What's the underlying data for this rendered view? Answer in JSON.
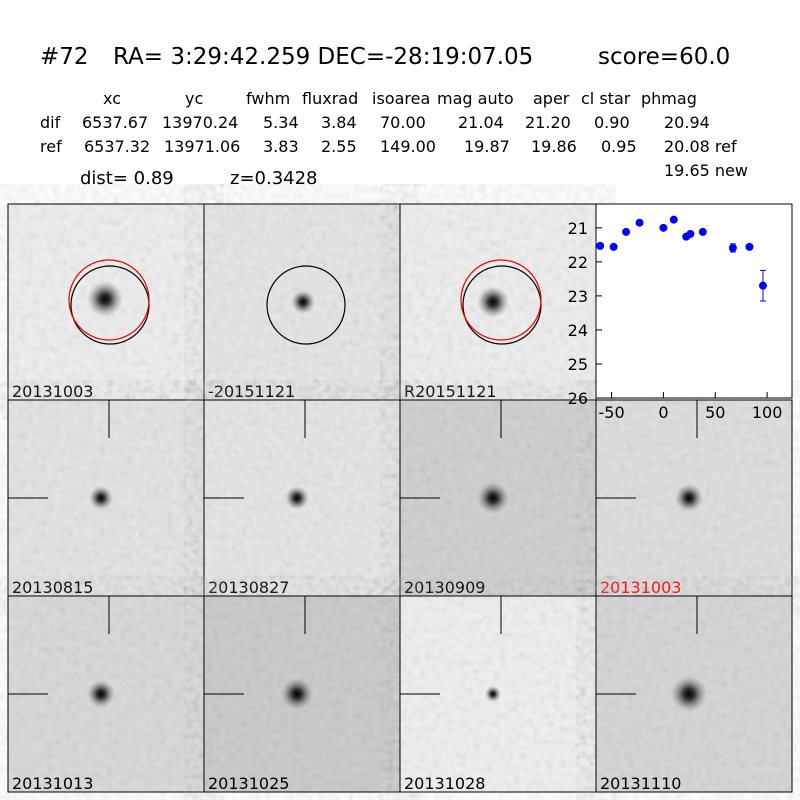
{
  "header": {
    "id": "#72",
    "coords": "RA= 3:29:42.259 DEC=-28:19:07.05",
    "score": "score=60.0"
  },
  "table": {
    "columns": [
      "xc",
      "yc",
      "fwhm",
      "fluxrad",
      "isoarea",
      "mag auto",
      "aper",
      "cl star",
      "phmag"
    ],
    "rows": [
      [
        "dif",
        "6537.67",
        "13970.24",
        "5.34",
        "3.84",
        "70.00",
        "21.04",
        "21.20",
        "0.90",
        "20.94"
      ],
      [
        "ref",
        "6537.32",
        "13971.06",
        "3.83",
        "2.55",
        "149.00",
        "19.87",
        "19.86",
        "0.95",
        "20.08 ref"
      ]
    ],
    "extra": "19.65 new",
    "dist": "dist=  0.89",
    "z": "z=0.3428"
  },
  "stamps": [
    "20131003",
    "-20151121",
    "R20151121",
    "20130815",
    "20130827",
    "20130909",
    "20131003",
    "20131013",
    "20131025",
    "20131028",
    "20131110"
  ],
  "chart_data": {
    "type": "scatter",
    "color": "#0000ff",
    "x": [
      -61,
      -48,
      -36,
      -23,
      0,
      10,
      22,
      26,
      38,
      67,
      83,
      96
    ],
    "values": [
      21.53,
      21.56,
      21.12,
      20.85,
      21.0,
      20.76,
      21.26,
      21.18,
      21.12,
      21.59,
      21.56,
      22.7
    ],
    "errors": [
      0.05,
      0.05,
      0.05,
      0.05,
      0.05,
      0.05,
      0.07,
      0.05,
      0.06,
      0.12,
      0.05,
      0.45
    ],
    "xlim": [
      -65,
      124
    ],
    "ylim": [
      26,
      20.3
    ],
    "xticks": [
      -50,
      0,
      50,
      100
    ],
    "yticks": [
      21,
      22,
      23,
      24,
      25,
      26
    ]
  }
}
